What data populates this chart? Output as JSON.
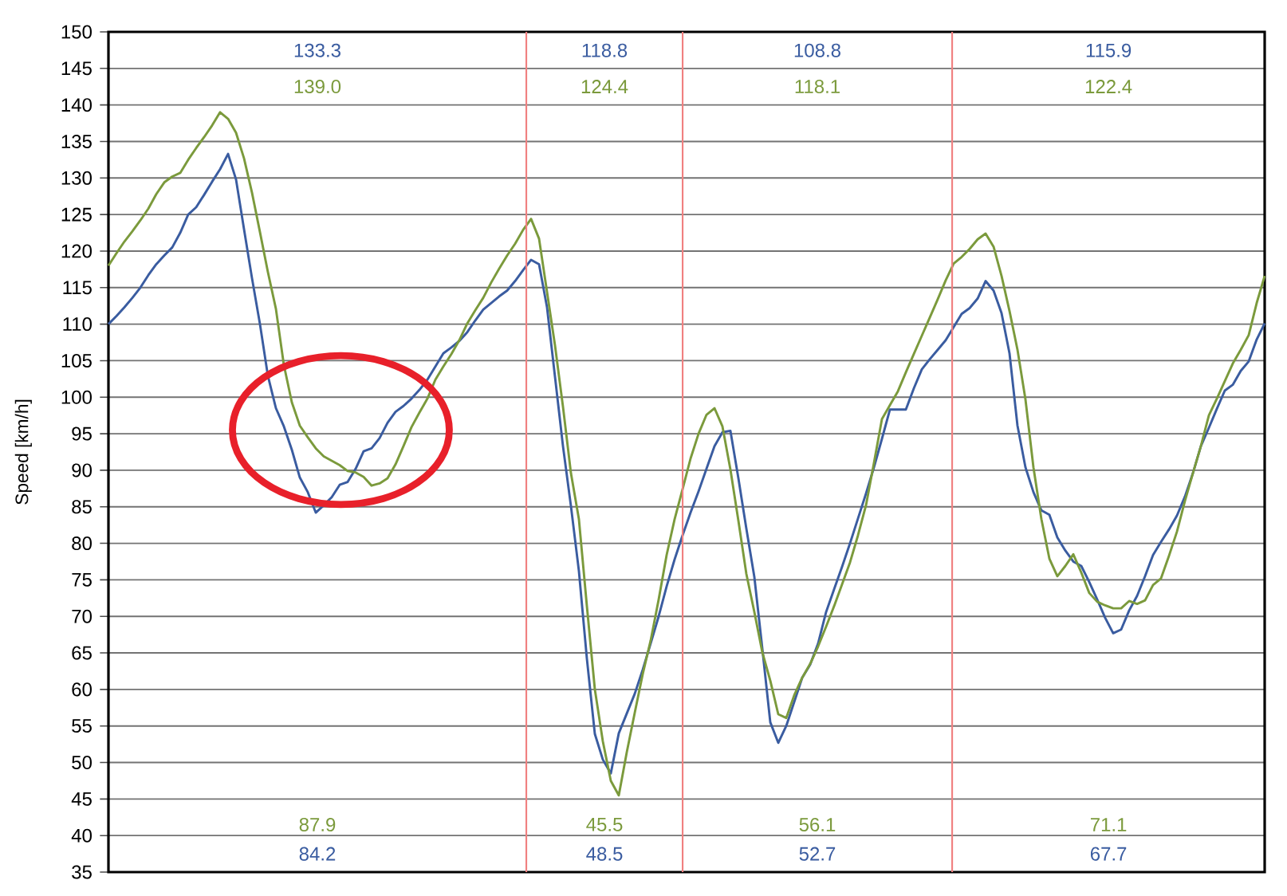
{
  "chart_data": {
    "type": "line",
    "ylabel": "Speed [km/h]",
    "categories": [
      null,
      null,
      null,
      null,
      null,
      null,
      null,
      null,
      null,
      null,
      null,
      null,
      null,
      null,
      null,
      null,
      null,
      null,
      null,
      null,
      null,
      null,
      null,
      null,
      null,
      null,
      null,
      null,
      null,
      null,
      null,
      null,
      null,
      null,
      null,
      null,
      null,
      null,
      null,
      null,
      null,
      null,
      null,
      null,
      null,
      null,
      null,
      null,
      null,
      null,
      null,
      null,
      null,
      null,
      null,
      null,
      null,
      null,
      null,
      null,
      null,
      null,
      null,
      null,
      null,
      null,
      null,
      null,
      null,
      null,
      null,
      null,
      null,
      null,
      null,
      null,
      null,
      null,
      null,
      null,
      null,
      null,
      null,
      null,
      null,
      null,
      null,
      null,
      null,
      null,
      null,
      null,
      null,
      null,
      null,
      null,
      null,
      null,
      null,
      null,
      null,
      null,
      null,
      null,
      null,
      null,
      null,
      null,
      null,
      null,
      null,
      null,
      null,
      null,
      null,
      null,
      null,
      null,
      null,
      null,
      null,
      null,
      null,
      null,
      null,
      null,
      null,
      null,
      null,
      null,
      null,
      null,
      null,
      null,
      null,
      null,
      null,
      null,
      null,
      null,
      null,
      null,
      null,
      null,
      null,
      null
    ],
    "ylim": [
      35,
      150
    ],
    "yticks": [
      35,
      40,
      45,
      50,
      55,
      60,
      65,
      70,
      75,
      80,
      85,
      90,
      95,
      100,
      105,
      110,
      115,
      120,
      125,
      130,
      135,
      140,
      145,
      150
    ],
    "grid": "y",
    "tick_labels": "y",
    "series": [
      {
        "color": "#3a5ca0",
        "values": [
          110,
          111.1,
          112.3,
          113.6,
          115,
          116.7,
          118.2,
          119.4,
          120.5,
          122.5,
          125,
          126,
          127.7,
          129.5,
          131.2,
          133.3,
          129.8,
          123,
          116.3,
          110,
          102.9,
          98.5,
          96,
          92.8,
          89,
          87,
          84.2,
          85.2,
          86.3,
          88,
          88.4,
          90.2,
          92.6,
          93,
          94.4,
          96.5,
          98,
          98.8,
          99.8,
          101,
          102.4,
          104.2,
          106,
          106.8,
          107.7,
          108.9,
          110.5,
          112,
          112.9,
          113.8,
          114.6,
          115.9,
          117.4,
          118.8,
          118.2,
          112.3,
          102.8,
          93.3,
          85.1,
          76.2,
          64.2,
          53.9,
          50.4,
          48.5,
          54,
          56.7,
          59.4,
          62.7,
          66.3,
          70,
          74.1,
          77.8,
          81.1,
          84.2,
          87.1,
          90.2,
          93.3,
          95.2,
          95.4,
          88.9,
          82,
          75.4,
          65.6,
          55.5,
          52.7,
          55,
          58.3,
          61.6,
          63.4,
          66.3,
          70.6,
          73.7,
          76.8,
          80,
          83.4,
          86.8,
          90.4,
          94.3,
          98.3,
          98.3,
          98.3,
          101.2,
          103.8,
          105.2,
          106.5,
          107.8,
          109.6,
          111.4,
          112.2,
          113.5,
          115.9,
          114.6,
          111.5,
          106,
          96.1,
          90.4,
          87,
          84.5,
          83.9,
          80.8,
          79,
          77.5,
          76.9,
          74.7,
          72.3,
          69.8,
          67.7,
          68.2,
          70.8,
          72.8,
          75.5,
          78.4,
          80.2,
          81.9,
          83.8,
          86.4,
          89.6,
          93.3,
          95.8,
          98.4,
          100.9,
          101.7,
          103.6,
          104.9,
          107.9,
          110.1
        ]
      },
      {
        "color": "#7b9a3c",
        "values": [
          118,
          119.7,
          121.3,
          122.7,
          124.2,
          125.8,
          127.8,
          129.4,
          130.2,
          130.7,
          132.5,
          134.1,
          135.6,
          137.2,
          139.0,
          138.1,
          136.2,
          132.7,
          128,
          122.6,
          117.1,
          112.1,
          104.4,
          99.3,
          96.1,
          94.5,
          93,
          91.9,
          91.3,
          90.7,
          89.9,
          89.7,
          89.1,
          87.9,
          88.2,
          88.9,
          90.8,
          93.3,
          95.9,
          97.9,
          99.8,
          102.4,
          104.2,
          105.9,
          107.8,
          110.1,
          111.9,
          113.6,
          115.7,
          117.6,
          119.4,
          121,
          122.9,
          124.4,
          121.7,
          114.4,
          107.1,
          98.7,
          89.6,
          83.3,
          71.4,
          60,
          52.9,
          47.5,
          45.5,
          51.4,
          56.8,
          62.1,
          66.7,
          72.3,
          78.4,
          83.3,
          87.4,
          91.6,
          95,
          97.6,
          98.5,
          96,
          90.1,
          83.1,
          75.8,
          70.6,
          65.1,
          61.2,
          56.6,
          56.1,
          59.2,
          61.6,
          63.5,
          65.9,
          68.6,
          71.4,
          74.4,
          77.4,
          81.1,
          85.2,
          91,
          97,
          98.9,
          100.8,
          103.4,
          105.9,
          108.4,
          110.9,
          113.4,
          116,
          118.3,
          119.2,
          120.3,
          121.6,
          122.4,
          120.6,
          116.6,
          111.8,
          106.5,
          99.7,
          90.4,
          83.3,
          77.9,
          75.5,
          76.9,
          78.5,
          76,
          73.2,
          72,
          71.5,
          71.1,
          71.1,
          72.1,
          71.7,
          72.2,
          74.3,
          75.2,
          78.3,
          81.6,
          85.8,
          89.6,
          93.3,
          97.5,
          99.8,
          102.2,
          104.6,
          106.5,
          108.5,
          112.9,
          116.6
        ]
      }
    ],
    "annotations": [
      "133.3",
      "139.0",
      "87.9",
      "84.2",
      "118.8",
      "124.4",
      "45.5",
      "48.5",
      "108.8",
      "118.1",
      "56.1",
      "52.7",
      "115.9",
      "122.4",
      "71.1",
      "67.7"
    ]
  }
}
